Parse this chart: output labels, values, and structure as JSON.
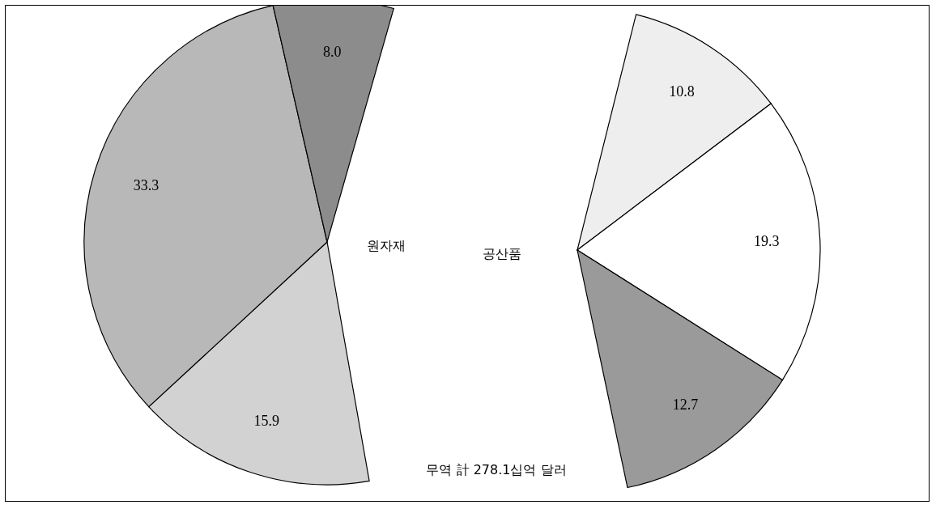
{
  "chart_data": [
    {
      "type": "pie",
      "categories": [
        null,
        null,
        null
      ],
      "values": [
        15.9,
        33.3,
        8.0
      ],
      "colors": [
        "#d2d2d2",
        "#b8b8b8",
        "#8c8c8c"
      ],
      "value_labels": [
        "15.9",
        "33.3",
        "8.0"
      ],
      "annotations": [
        "원자재"
      ]
    },
    {
      "type": "pie",
      "categories": [
        null,
        null,
        null
      ],
      "values": [
        10.8,
        19.3,
        12.7
      ],
      "colors": [
        "#eeeeee",
        "#ffffff",
        "#9a9a9a"
      ],
      "value_labels": [
        "10.8",
        "19.3",
        "12.7"
      ],
      "annotations": [
        "공산품",
        "무역 計 278.1십억 달러"
      ]
    }
  ]
}
